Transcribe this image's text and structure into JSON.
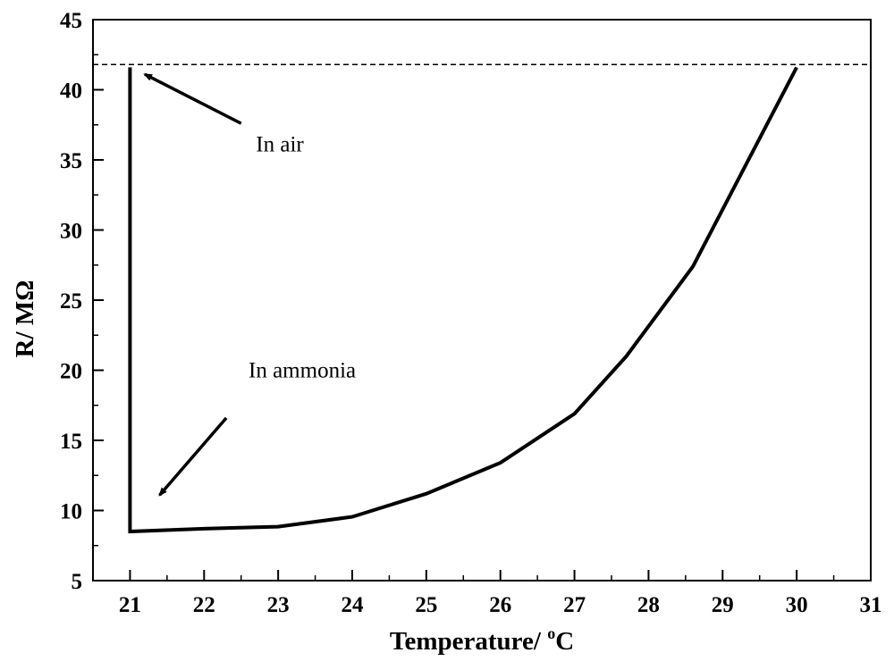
{
  "chart_data": {
    "type": "line",
    "xlabel": "Temperature/ °C",
    "xlabel_main": "Temperature/ ",
    "xlabel_sup": "o",
    "xlabel_unit": "C",
    "ylabel": "R/ MΩ",
    "xlim": [
      20.5,
      31
    ],
    "ylim": [
      5,
      45
    ],
    "xticks": [
      "21",
      "22",
      "23",
      "24",
      "25",
      "26",
      "27",
      "28",
      "29",
      "30",
      "31"
    ],
    "yticks": [
      "5",
      "10",
      "15",
      "20",
      "25",
      "30",
      "35",
      "40",
      "45"
    ],
    "grid": false,
    "series": [
      {
        "points": [
          {
            "x": 21,
            "y": 41.6
          },
          {
            "x": 21,
            "y": 8.5
          },
          {
            "x": 22,
            "y": 8.7
          },
          {
            "x": 23,
            "y": 8.85
          },
          {
            "x": 24,
            "y": 9.55
          },
          {
            "x": 25,
            "y": 11.2
          },
          {
            "x": 26,
            "y": 13.4
          },
          {
            "x": 27,
            "y": 16.9
          },
          {
            "x": 27.7,
            "y": 21.0
          },
          {
            "x": 28.6,
            "y": 27.4
          },
          {
            "x": 29.2,
            "y": 33.5
          },
          {
            "x": 30,
            "y": 41.6
          }
        ]
      }
    ],
    "reference_line": {
      "y": 41.8,
      "style": "dashed"
    },
    "annotations": [
      {
        "text": "In air",
        "text_x": 22.7,
        "text_y": 35.6,
        "arrow_from": {
          "x": 22.5,
          "y": 37.6
        },
        "arrow_to": {
          "x": 21.2,
          "y": 41.1
        }
      },
      {
        "text": "In ammonia",
        "text_x": 22.6,
        "text_y": 19.5,
        "arrow_from": {
          "x": 22.3,
          "y": 16.6
        },
        "arrow_to": {
          "x": 21.4,
          "y": 11.1
        }
      }
    ],
    "colors": {
      "line": "#000000",
      "background": "#ffffff"
    }
  }
}
